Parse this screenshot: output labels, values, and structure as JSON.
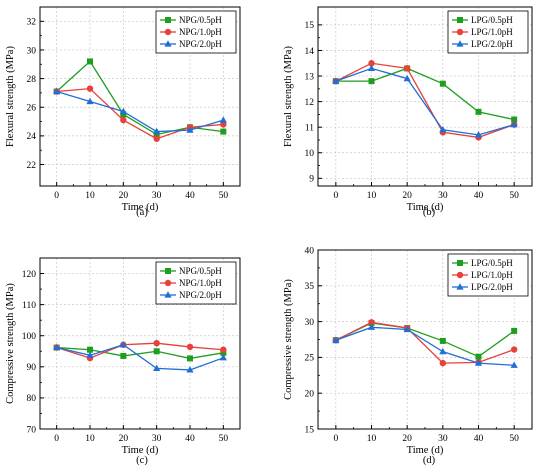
{
  "colors": {
    "green": "#1e9e1e",
    "red": "#e8403a",
    "blue": "#1f6fd6",
    "grid": "#c8c8c8",
    "axis": "#000000"
  },
  "chart_data": [
    {
      "type": "line",
      "caption": "(a)",
      "xlabel": "Time (d)",
      "ylabel": "Flexural strength (MPa)",
      "x": [
        0,
        10,
        20,
        30,
        40,
        50
      ],
      "xlim": [
        -5,
        55
      ],
      "ylim": [
        20.5,
        33
      ],
      "xticks": [
        0,
        10,
        20,
        30,
        40,
        50
      ],
      "yticks": [
        22,
        24,
        26,
        28,
        30,
        32
      ],
      "grid": true,
      "legend": "top-right",
      "series": [
        {
          "name": "NPG/0.5pH",
          "color": "green",
          "marker": "square",
          "values": [
            27.1,
            29.2,
            25.5,
            24.1,
            24.6,
            24.3
          ]
        },
        {
          "name": "NPG/1.0pH",
          "color": "red",
          "marker": "circle",
          "values": [
            27.1,
            27.3,
            25.1,
            23.8,
            24.6,
            24.8
          ]
        },
        {
          "name": "NPG/2.0pH",
          "color": "blue",
          "marker": "triangle",
          "values": [
            27.1,
            26.4,
            25.7,
            24.3,
            24.4,
            25.1
          ]
        }
      ]
    },
    {
      "type": "line",
      "caption": "(b)",
      "xlabel": "Time (d)",
      "ylabel": "Flexural strength (MPa)",
      "x": [
        0,
        10,
        20,
        30,
        40,
        50
      ],
      "xlim": [
        -5,
        55
      ],
      "ylim": [
        8.7,
        15.7
      ],
      "xticks": [
        0,
        10,
        20,
        30,
        40,
        50
      ],
      "yticks": [
        9,
        10,
        11,
        12,
        13,
        14,
        15
      ],
      "grid": true,
      "legend": "top-right",
      "series": [
        {
          "name": "LPG/0.5pH",
          "color": "green",
          "marker": "square",
          "values": [
            12.8,
            12.8,
            13.3,
            12.7,
            11.6,
            11.3
          ]
        },
        {
          "name": "LPG/1.0pH",
          "color": "red",
          "marker": "circle",
          "values": [
            12.8,
            13.5,
            13.3,
            10.8,
            10.6,
            11.1
          ]
        },
        {
          "name": "LPG/2.0pH",
          "color": "blue",
          "marker": "triangle",
          "values": [
            12.8,
            13.3,
            12.9,
            10.9,
            10.7,
            11.1
          ]
        }
      ]
    },
    {
      "type": "line",
      "caption": "(c)",
      "xlabel": "Time (d)",
      "ylabel": "Compressive strength (MPa)",
      "x": [
        0,
        10,
        20,
        30,
        40,
        50
      ],
      "xlim": [
        -5,
        55
      ],
      "ylim": [
        70,
        125
      ],
      "xticks": [
        0,
        10,
        20,
        30,
        40,
        50
      ],
      "yticks": [
        70,
        80,
        90,
        100,
        110,
        120
      ],
      "grid": true,
      "legend": "top-right",
      "series": [
        {
          "name": "NPG/0.5pH",
          "color": "green",
          "marker": "square",
          "values": [
            96.2,
            95.5,
            93.5,
            95.0,
            92.7,
            94.5
          ]
        },
        {
          "name": "NPG/1.0pH",
          "color": "red",
          "marker": "circle",
          "values": [
            96.2,
            92.8,
            97.1,
            97.6,
            96.4,
            95.5
          ]
        },
        {
          "name": "NPG/2.0pH",
          "color": "blue",
          "marker": "triangle",
          "values": [
            96.2,
            93.7,
            97.1,
            89.5,
            89.0,
            92.9
          ]
        }
      ]
    },
    {
      "type": "line",
      "caption": "(d)",
      "xlabel": "Time (d)",
      "ylabel": "Compressive strength (MPa)",
      "x": [
        0,
        10,
        20,
        30,
        40,
        50
      ],
      "xlim": [
        -5,
        55
      ],
      "ylim": [
        15,
        40
      ],
      "xticks": [
        0,
        10,
        20,
        30,
        40,
        50
      ],
      "yticks": [
        15,
        20,
        25,
        30,
        35,
        40
      ],
      "grid": true,
      "legend": "top-right",
      "series": [
        {
          "name": "LPG/0.5pH",
          "color": "green",
          "marker": "square",
          "values": [
            27.4,
            29.8,
            29.1,
            27.3,
            25.1,
            28.7
          ]
        },
        {
          "name": "LPG/1.0pH",
          "color": "red",
          "marker": "circle",
          "values": [
            27.4,
            29.9,
            29.1,
            24.2,
            24.3,
            26.1
          ]
        },
        {
          "name": "LPG/2.0pH",
          "color": "blue",
          "marker": "triangle",
          "values": [
            27.4,
            29.2,
            28.9,
            25.8,
            24.2,
            23.9
          ]
        }
      ]
    }
  ]
}
